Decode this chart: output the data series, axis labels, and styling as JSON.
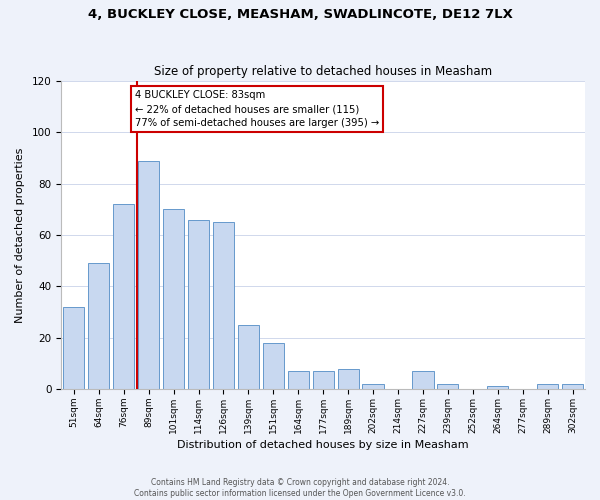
{
  "title": "4, BUCKLEY CLOSE, MEASHAM, SWADLINCOTE, DE12 7LX",
  "subtitle": "Size of property relative to detached houses in Measham",
  "xlabel": "Distribution of detached houses by size in Measham",
  "ylabel": "Number of detached properties",
  "bar_labels": [
    "51sqm",
    "64sqm",
    "76sqm",
    "89sqm",
    "101sqm",
    "114sqm",
    "126sqm",
    "139sqm",
    "151sqm",
    "164sqm",
    "177sqm",
    "189sqm",
    "202sqm",
    "214sqm",
    "227sqm",
    "239sqm",
    "252sqm",
    "264sqm",
    "277sqm",
    "289sqm",
    "302sqm"
  ],
  "bar_values": [
    32,
    49,
    72,
    89,
    70,
    66,
    65,
    25,
    18,
    7,
    7,
    8,
    2,
    0,
    7,
    2,
    0,
    1,
    0,
    2,
    2
  ],
  "bar_color": "#c8d8f0",
  "bar_edge_color": "#6699cc",
  "ylim": [
    0,
    120
  ],
  "yticks": [
    0,
    20,
    40,
    60,
    80,
    100,
    120
  ],
  "bin_edges": [
    51,
    64,
    76,
    89,
    101,
    114,
    126,
    139,
    151,
    164,
    177,
    189,
    202,
    214,
    227,
    239,
    252,
    264,
    277,
    289,
    302
  ],
  "vline_sqm": 83,
  "vline_color": "#cc0000",
  "annotation_title": "4 BUCKLEY CLOSE: 83sqm",
  "annotation_line1": "← 22% of detached houses are smaller (115)",
  "annotation_line2": "77% of semi-detached houses are larger (395) →",
  "annotation_box_color": "#ffffff",
  "annotation_box_edge": "#cc0000",
  "footer_line1": "Contains HM Land Registry data © Crown copyright and database right 2024.",
  "footer_line2": "Contains public sector information licensed under the Open Government Licence v3.0.",
  "background_color": "#eef2fa",
  "plot_bg_color": "#ffffff",
  "grid_color": "#d0d8ec"
}
